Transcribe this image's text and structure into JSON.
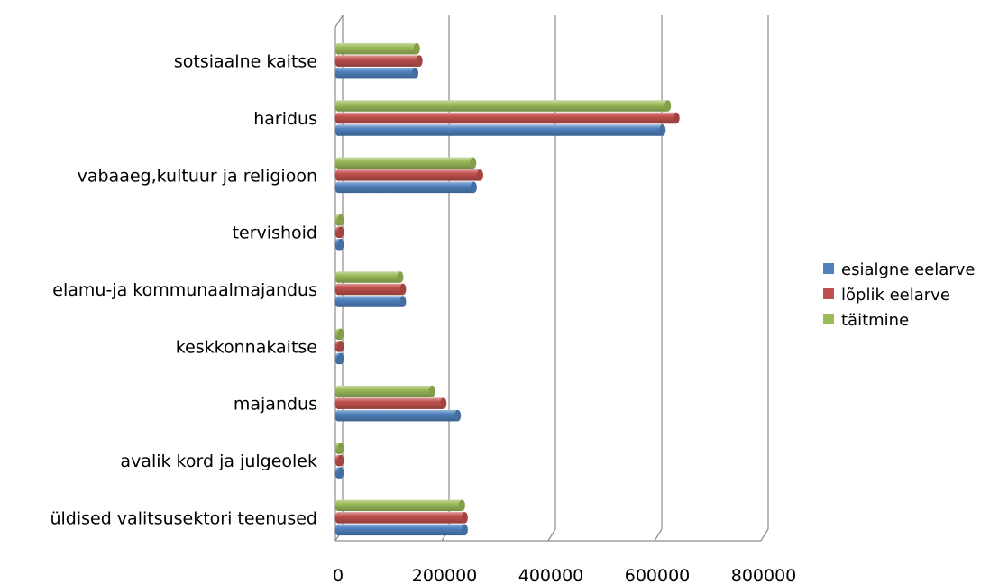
{
  "chart_data": {
    "type": "bar",
    "orientation": "horizontal",
    "style": "3d-cylinder",
    "title": "",
    "xlabel": "",
    "ylabel": "",
    "xlim": [
      0,
      800000
    ],
    "x_ticks": [
      "0",
      "200000",
      "400000",
      "600000",
      "800000"
    ],
    "grid": true,
    "legend_position": "right",
    "categories": [
      "sotsiaalne kaitse",
      "haridus",
      "vabaaeg,kultuur ja religioon",
      "tervishoid",
      "elamu-ja kommunaalmajandus",
      "keskkonnakaitse",
      "majandus",
      "avalik kord ja julgeolek",
      "üldised valitsusektori teenused"
    ],
    "series": [
      {
        "name": "esialgne eelarve",
        "color": "#4f81bd",
        "values": [
          150000,
          615000,
          260000,
          5000,
          127000,
          5000,
          230000,
          5000,
          243000
        ]
      },
      {
        "name": "lõplik eelarve",
        "color": "#c0504d",
        "values": [
          158000,
          641000,
          272000,
          5000,
          127000,
          5000,
          203000,
          5000,
          243000
        ]
      },
      {
        "name": "täitmine",
        "color": "#9bbb59",
        "values": [
          153000,
          625000,
          259000,
          5000,
          122000,
          5000,
          182000,
          5000,
          238000
        ]
      }
    ]
  }
}
